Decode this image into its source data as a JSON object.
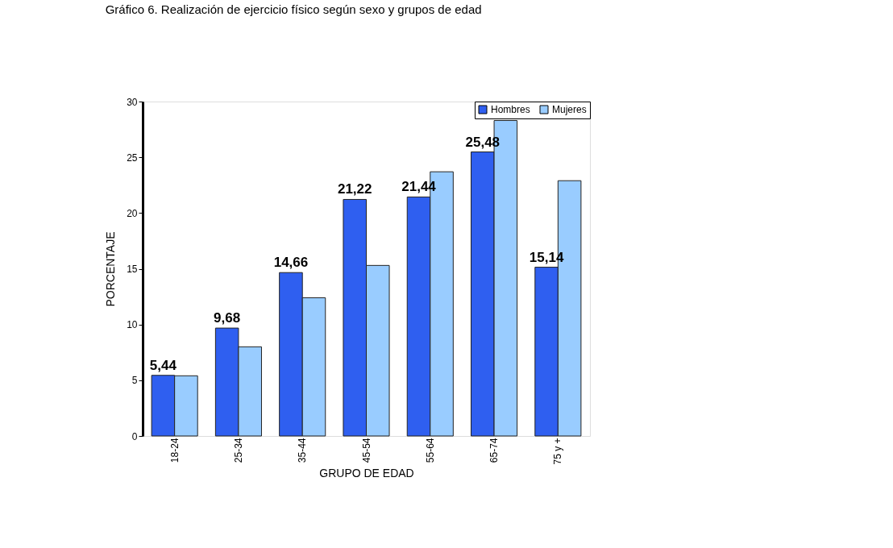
{
  "chart_data": {
    "type": "bar",
    "title": "Gráfico 6. Realización de ejercicio físico según sexo  y grupos de edad",
    "xlabel": "GRUPO DE EDAD",
    "ylabel": "PORCENTAJE",
    "categories": [
      "18-24",
      "25-34",
      "35-44",
      "45-54",
      "55-64",
      "65-74",
      "75 y +"
    ],
    "series": [
      {
        "name": "Hombres",
        "color": "#2f5ff0",
        "values": [
          5.44,
          9.68,
          14.66,
          21.22,
          21.44,
          25.48,
          15.14
        ],
        "value_labels": [
          "5,44",
          "9,68",
          "14,66",
          "21,22",
          "21,44",
          "25,48",
          "15,14"
        ]
      },
      {
        "name": "Mujeres",
        "color": "#99ccff",
        "values": [
          5.4,
          8.0,
          12.4,
          15.3,
          23.7,
          28.3,
          22.9
        ]
      }
    ],
    "ylim": [
      0,
      30
    ],
    "yticks": [
      0,
      5,
      10,
      15,
      20,
      25,
      30
    ],
    "grid": false,
    "legend": "top right"
  }
}
